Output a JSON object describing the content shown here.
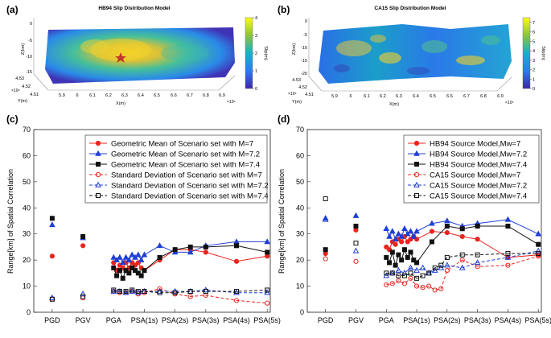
{
  "chart_data": [
    {
      "panel": "(a)",
      "type": "heatmap",
      "title": "HB94 Slip Distribution Model",
      "xlabel": "X(m)",
      "ylabel": "Y(m)",
      "zlabel": "Z(km)",
      "x_ticks": [
        "5.9",
        "6",
        "6.1",
        "6.2",
        "6.3",
        "6.4",
        "6.5",
        "6.6",
        "6.7",
        "6.8",
        "6.9"
      ],
      "x_exponent": "×10⁵",
      "y_ticks": [
        "4.53",
        "4.52",
        "4.51"
      ],
      "y_exponent": "×10⁶",
      "z_ticks": [
        "0",
        "-5",
        "-10",
        "-15"
      ],
      "colorbar_label": "Slip(m)",
      "colorbar_ticks": [
        0,
        1,
        2,
        3,
        4
      ],
      "colorbar_range": [
        0,
        4
      ],
      "annotation": "hypocenter star"
    },
    {
      "panel": "(b)",
      "type": "heatmap",
      "title": "CA15 Slip Distribution Model",
      "xlabel": "X(m)",
      "ylabel": "Y(m)",
      "zlabel": "Z(km)",
      "x_ticks": [
        "5.9",
        "6",
        "6.1",
        "6.2",
        "6.3",
        "6.4",
        "6.5",
        "6.6",
        "6.7",
        "6.8",
        "6.9"
      ],
      "x_exponent": "×10⁵",
      "y_ticks": [
        "4.53",
        "4.52",
        "4.51"
      ],
      "y_exponent": "×10⁶",
      "z_ticks": [
        "0",
        "-5",
        "-10",
        "-15",
        "-20"
      ],
      "colorbar_label": "Slip(m)",
      "colorbar_ticks": [
        0,
        1,
        2,
        3,
        4,
        5,
        6,
        7
      ],
      "colorbar_range": [
        0,
        7.5
      ]
    },
    {
      "panel": "(c)",
      "type": "line",
      "ylabel": "Range[km] of Spatial Correlation",
      "ylim": [
        0,
        70
      ],
      "yticks": [
        0,
        10,
        20,
        30,
        40,
        50,
        60,
        70
      ],
      "xticks": [
        "PGD",
        "PGV",
        "PGA",
        "PSA(1s)",
        "PSA(2s)",
        "PSA(3s)",
        "PSA(4s)",
        "PSA(5s)"
      ],
      "xtick_positions": [
        -2,
        -1,
        0,
        1,
        2,
        3,
        4,
        5
      ],
      "legend_position": "top-right",
      "series": [
        {
          "name": "Geometric Mean of Scenario set with M=7",
          "color": "#e8251e",
          "marker": "circle",
          "dash": false,
          "pgd": 21.5,
          "pgv": 25.5,
          "x": [
            0,
            0.1,
            0.2,
            0.3,
            0.4,
            0.5,
            0.6,
            0.7,
            0.8,
            0.9,
            1,
            1.5,
            2,
            2.5,
            3,
            4,
            5
          ],
          "y": [
            19,
            16,
            18,
            17,
            19,
            17,
            19,
            18,
            19,
            17,
            16,
            20,
            24,
            24,
            23,
            19.5,
            21.5
          ]
        },
        {
          "name": "Geometric Mean of Scenario set with M=7.2",
          "color": "#1f3fd6",
          "marker": "triangle",
          "dash": false,
          "pgd": 33.5,
          "pgv": 28.5,
          "x": [
            0,
            0.1,
            0.2,
            0.3,
            0.4,
            0.5,
            0.6,
            0.7,
            0.8,
            0.9,
            1,
            1.5,
            2,
            2.5,
            3,
            4,
            5
          ],
          "y": [
            21,
            20,
            21,
            19,
            21,
            20,
            22,
            21,
            22,
            20,
            22,
            25.5,
            23,
            23,
            25.5,
            27,
            27
          ]
        },
        {
          "name": "Geometric Mean of Scenario set with M=7.4",
          "color": "#111111",
          "marker": "square",
          "dash": false,
          "pgd": 36,
          "pgv": 29,
          "x": [
            0,
            0.1,
            0.2,
            0.3,
            0.4,
            0.5,
            0.6,
            0.7,
            0.8,
            0.9,
            1,
            1.5,
            2,
            2.5,
            3,
            4,
            5
          ],
          "y": [
            17,
            14,
            16,
            13,
            16,
            15,
            17,
            16,
            15,
            14,
            16,
            21,
            24,
            25,
            25,
            25.5,
            23
          ]
        },
        {
          "name": "Standard Deviation of Scenario set with M=7",
          "color": "#e8251e",
          "marker": "circle-open",
          "dash": true,
          "pgd": 5,
          "pgv": 5.5,
          "x": [
            0,
            0.2,
            0.4,
            0.6,
            0.8,
            1,
            1.5,
            2,
            2.5,
            3,
            4,
            5
          ],
          "y": [
            8,
            7.5,
            7.5,
            8,
            7,
            7.5,
            9,
            7,
            6,
            6.5,
            4.5,
            3.5
          ]
        },
        {
          "name": "Standard Deviation of Scenario set with M=7.2",
          "color": "#1f3fd6",
          "marker": "triangle-open",
          "dash": true,
          "pgd": 5.5,
          "pgv": 7,
          "x": [
            0,
            0.2,
            0.4,
            0.6,
            0.8,
            1,
            1.5,
            2,
            2.5,
            3,
            4,
            5
          ],
          "y": [
            8,
            8,
            7.5,
            8,
            7.5,
            8,
            8,
            8,
            8,
            8.5,
            7.5,
            7.5
          ]
        },
        {
          "name": "Standard Deviation of Scenario set with M=7.4",
          "color": "#111111",
          "marker": "square-open",
          "dash": true,
          "pgd": 5,
          "pgv": 6,
          "x": [
            0,
            0.2,
            0.4,
            0.6,
            0.8,
            1,
            1.5,
            2,
            2.5,
            3,
            4,
            5
          ],
          "y": [
            8.5,
            8,
            8,
            8.5,
            8,
            8,
            7.5,
            7.5,
            8,
            8,
            8,
            8.5
          ]
        }
      ]
    },
    {
      "panel": "(d)",
      "type": "line",
      "ylabel": "Range[km] of Spatial Correlation",
      "ylim": [
        0,
        70
      ],
      "yticks": [
        0,
        10,
        20,
        30,
        40,
        50,
        60,
        70
      ],
      "xticks": [
        "PGD",
        "PGV",
        "PGA",
        "PSA(1s)",
        "PSA(2s)",
        "PSA(3s)",
        "PSA(4s)",
        "PSA(5s)"
      ],
      "xtick_positions": [
        -2,
        -1,
        0,
        1,
        2,
        3,
        4,
        5
      ],
      "legend_position": "top-right",
      "series": [
        {
          "name": "HB94 Source Model,Mw=7",
          "color": "#e8251e",
          "marker": "circle",
          "dash": false,
          "pgd": 22.5,
          "pgv": 31.5,
          "x": [
            0,
            0.1,
            0.2,
            0.3,
            0.4,
            0.5,
            0.6,
            0.7,
            0.8,
            0.9,
            1,
            1.5,
            2,
            2.5,
            3,
            4,
            5
          ],
          "y": [
            25,
            24,
            27,
            26,
            28,
            27,
            29,
            27,
            28,
            29,
            28,
            31,
            30.5,
            29,
            28,
            21,
            22
          ]
        },
        {
          "name": "HB94 Source Model,Mw=7.2",
          "color": "#1f3fd6",
          "marker": "triangle",
          "dash": false,
          "pgd": 36,
          "pgv": 37,
          "x": [
            0,
            0.1,
            0.2,
            0.3,
            0.4,
            0.5,
            0.6,
            0.7,
            0.8,
            0.9,
            1,
            1.5,
            2,
            2.5,
            3,
            4,
            5
          ],
          "y": [
            32,
            29,
            31,
            28,
            30,
            29,
            32,
            30,
            31,
            29,
            31,
            34,
            35,
            33,
            34,
            35.5,
            30
          ]
        },
        {
          "name": "HB94 Source Model,Mw=7.4",
          "color": "#111111",
          "marker": "square",
          "dash": false,
          "pgd": 24,
          "pgv": 33,
          "x": [
            0,
            0.1,
            0.2,
            0.3,
            0.4,
            0.5,
            0.6,
            0.7,
            0.8,
            0.9,
            1,
            1.5,
            2,
            2.5,
            3,
            4,
            5
          ],
          "y": [
            21,
            19,
            23,
            18,
            22,
            20,
            24,
            21,
            23,
            20,
            19,
            27,
            33,
            32,
            33,
            33,
            26
          ]
        },
        {
          "name": "CA15 Source Model,Mw=7",
          "color": "#e8251e",
          "marker": "circle-open",
          "dash": true,
          "pgd": 20.5,
          "pgv": 19.5,
          "x": [
            0,
            0.2,
            0.4,
            0.6,
            0.8,
            1,
            1.2,
            1.4,
            1.6,
            1.8,
            2,
            2.5,
            3,
            4,
            5
          ],
          "y": [
            10.5,
            11,
            12,
            11,
            13,
            10,
            9.5,
            10,
            8.5,
            9,
            16,
            20,
            17.5,
            18,
            21.5
          ]
        },
        {
          "name": "CA15 Source Model,Mw=7.2",
          "color": "#1f3fd6",
          "marker": "triangle-open",
          "dash": true,
          "pgd": 35.5,
          "pgv": 23.5,
          "x": [
            0,
            0.2,
            0.4,
            0.6,
            0.8,
            1,
            1.2,
            1.4,
            1.6,
            1.8,
            2,
            2.5,
            3,
            4,
            5
          ],
          "y": [
            14,
            15,
            16,
            15,
            17,
            16,
            17,
            15,
            16,
            17,
            18,
            17,
            19,
            21,
            23.5
          ]
        },
        {
          "name": "CA15 Source Model,Mw=7.4",
          "color": "#111111",
          "marker": "square-open",
          "dash": true,
          "pgd": 43.5,
          "pgv": 26.5,
          "x": [
            0,
            0.2,
            0.4,
            0.6,
            0.8,
            1,
            1.2,
            1.4,
            1.6,
            1.8,
            2,
            2.5,
            3,
            4,
            5
          ],
          "y": [
            15,
            15,
            14,
            14,
            15,
            13,
            14,
            15,
            17,
            18,
            21,
            22,
            22,
            22.5,
            22.5
          ]
        }
      ]
    }
  ]
}
